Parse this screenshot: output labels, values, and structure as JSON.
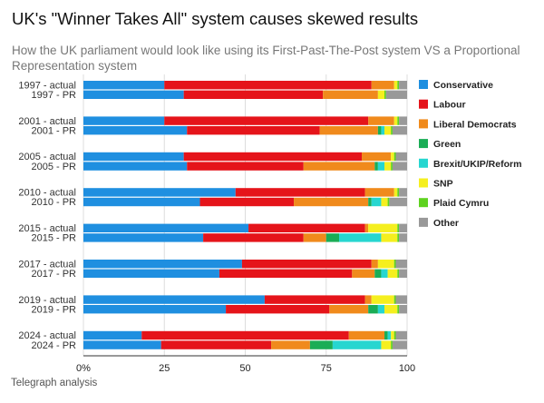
{
  "chart_data": {
    "type": "bar",
    "orientation": "horizontal",
    "stacked": true,
    "title": "UK's \"Winner Takes All\" system causes skewed results",
    "subtitle": "How the UK parliament would look like using its First-Past-The-Post system VS a Proportional Representation system",
    "source": "Telegraph analysis",
    "categories": [
      "1997 - actual",
      "1997 - PR",
      "2001 - actual",
      "2001 - PR",
      "2005 - actual",
      "2005 - PR",
      "2010 - actual",
      "2010 - PR",
      "2015 - actual",
      "2015 - PR",
      "2017 - actual",
      "2017 - PR",
      "2019 - actual",
      "2019 - PR",
      "2024 - actual",
      "2024 - PR"
    ],
    "xlim": [
      0,
      100
    ],
    "xticks": [
      0,
      25,
      50,
      75,
      100
    ],
    "xtick_labels": [
      "0%",
      "25",
      "50",
      "75",
      "100"
    ],
    "xlabel": "",
    "ylabel": "",
    "legend_position": "right",
    "series": [
      {
        "name": "Conservative",
        "color": "#1f8fe0",
        "values": [
          25,
          31,
          25,
          32,
          31,
          32,
          47,
          36,
          51,
          37,
          49,
          42,
          56,
          44,
          18,
          24
        ]
      },
      {
        "name": "Labour",
        "color": "#e5141a",
        "values": [
          64,
          43,
          63,
          41,
          55,
          36,
          40,
          29,
          36,
          31,
          40,
          41,
          31,
          32,
          64,
          34
        ]
      },
      {
        "name": "Liberal Democrats",
        "color": "#f08a1c",
        "values": [
          7,
          17,
          8,
          18,
          9,
          22,
          9,
          23,
          1,
          7,
          2,
          7,
          2,
          12,
          11,
          12
        ]
      },
      {
        "name": "Green",
        "color": "#1aad56",
        "values": [
          0,
          0,
          0,
          1,
          0,
          1,
          0,
          1,
          0,
          4,
          0,
          2,
          0,
          3,
          1,
          7
        ]
      },
      {
        "name": "Brexit/UKIP/Reform",
        "color": "#27d6d0",
        "values": [
          0,
          0,
          0,
          1,
          0,
          2,
          0,
          3,
          0,
          13,
          0,
          2,
          0,
          2,
          1,
          15
        ]
      },
      {
        "name": "SNP",
        "color": "#f5ef1f",
        "values": [
          1,
          2,
          1,
          2,
          1,
          2,
          1,
          2,
          9,
          5,
          5,
          3,
          7,
          4,
          1,
          3
        ]
      },
      {
        "name": "Plaid Cymru",
        "color": "#5fd21f",
        "values": [
          0.5,
          0.5,
          0.5,
          0.5,
          0.5,
          0.5,
          0.5,
          0.5,
          0.5,
          0.5,
          0.5,
          0.5,
          0.5,
          0.5,
          0.5,
          0.5
        ]
      },
      {
        "name": "Other",
        "color": "#999999",
        "values": [
          2.5,
          6.5,
          2.5,
          4.5,
          3.5,
          4.5,
          2.5,
          5.5,
          2.5,
          2.5,
          3.5,
          2.5,
          3.5,
          2.5,
          3.5,
          4.5
        ]
      }
    ]
  }
}
